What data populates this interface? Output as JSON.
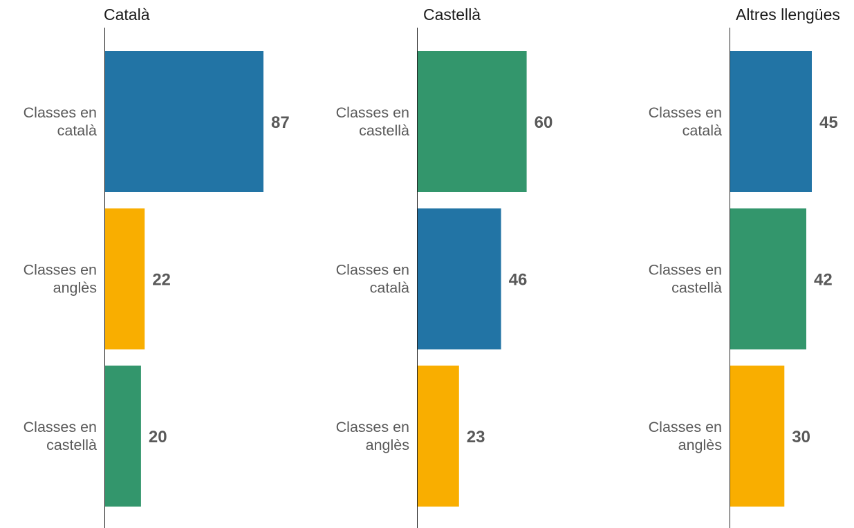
{
  "chart_data": [
    {
      "type": "bar",
      "orientation": "horizontal",
      "title": "Català",
      "categories": [
        "Classes en català",
        "Classes en anglès",
        "Classes en castellà"
      ],
      "category_lines": [
        [
          "Classes en",
          "català"
        ],
        [
          "Classes en",
          "anglès"
        ],
        [
          "Classes en",
          "castellà"
        ]
      ],
      "values": [
        87,
        22,
        20
      ],
      "colors": [
        "#2274a5",
        "#f9ae00",
        "#33966c"
      ],
      "xlim": [
        0,
        100
      ]
    },
    {
      "type": "bar",
      "orientation": "horizontal",
      "title": "Castellà",
      "categories": [
        "Classes en castellà",
        "Classes en català",
        "Classes en anglès"
      ],
      "category_lines": [
        [
          "Classes en",
          "castellà"
        ],
        [
          "Classes en",
          "català"
        ],
        [
          "Classes en",
          "anglès"
        ]
      ],
      "values": [
        60,
        46,
        23
      ],
      "colors": [
        "#33966c",
        "#2274a5",
        "#f9ae00"
      ],
      "xlim": [
        0,
        100
      ]
    },
    {
      "type": "bar",
      "orientation": "horizontal",
      "title": "Altres llengües",
      "categories": [
        "Classes en català",
        "Classes en castellà",
        "Classes en anglès"
      ],
      "category_lines": [
        [
          "Classes en",
          "català"
        ],
        [
          "Classes en",
          "castellà"
        ],
        [
          "Classes en",
          "anglès"
        ]
      ],
      "values": [
        45,
        42,
        30
      ],
      "colors": [
        "#2274a5",
        "#33966c",
        "#f9ae00"
      ],
      "xlim": [
        0,
        100
      ]
    }
  ],
  "colors": {
    "catala": "#2274a5",
    "castella": "#33966c",
    "angles": "#f9ae00",
    "label_text": "#595959",
    "title_text": "#1a1a1a"
  }
}
